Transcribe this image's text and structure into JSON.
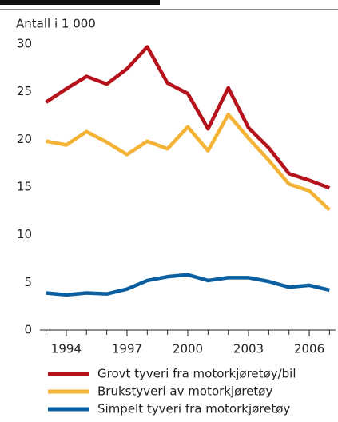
{
  "chart_data": {
    "type": "line",
    "y_label": "Antall i 1 000",
    "x": [
      1993,
      1994,
      1995,
      1996,
      1997,
      1998,
      1999,
      2000,
      2001,
      2002,
      2003,
      2004,
      2005,
      2006,
      2007
    ],
    "series": [
      {
        "name": "Grovt tyveri fra motorkjøretøy/bil",
        "color": "#b5121b",
        "values": [
          23.9,
          25.3,
          26.6,
          25.8,
          27.4,
          29.7,
          25.9,
          24.8,
          21.1,
          25.4,
          21.2,
          19.1,
          16.4,
          15.7,
          14.9
        ]
      },
      {
        "name": "Brukstyveri av motorkjøretøy",
        "color": "#f5b335",
        "values": [
          19.8,
          19.4,
          20.8,
          19.7,
          18.4,
          19.8,
          19.0,
          21.3,
          18.8,
          22.6,
          20.1,
          17.8,
          15.3,
          14.6,
          12.6
        ]
      },
      {
        "name": "Simpelt tyveri fra motorkjøretøy",
        "color": "#0a5fa0",
        "values": [
          3.9,
          3.7,
          3.9,
          3.8,
          4.3,
          5.2,
          5.6,
          5.8,
          5.2,
          5.5,
          5.5,
          5.1,
          4.5,
          4.7,
          4.2
        ]
      }
    ],
    "xlim": [
      1992.7,
      2007.3
    ],
    "xticks": [
      1994,
      1997,
      2000,
      2003,
      2006
    ],
    "ylim": [
      0,
      30
    ],
    "yticks": [
      0,
      5,
      10,
      15,
      20,
      25,
      30
    ]
  }
}
